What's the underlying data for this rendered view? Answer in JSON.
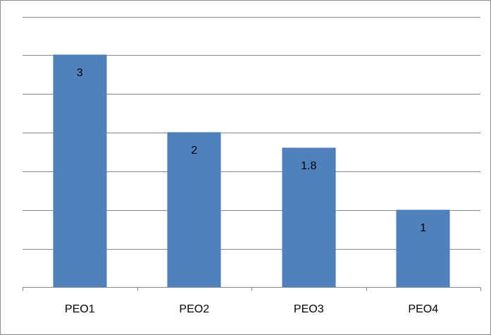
{
  "chart_data": {
    "type": "bar",
    "categories": [
      "PEO1",
      "PEO2",
      "PEO3",
      "PEO4"
    ],
    "values": [
      3,
      2,
      1.8,
      1
    ],
    "data_labels": [
      "3",
      "2",
      "1.8",
      "1"
    ],
    "ylim": [
      0,
      3.5
    ],
    "y_gridline_step": 0.5,
    "grid": true,
    "legend": "none",
    "bar_color": "#4f81bd",
    "bar_border_color": "#4a7ab5",
    "gridline_color": "#8a8a8a"
  }
}
